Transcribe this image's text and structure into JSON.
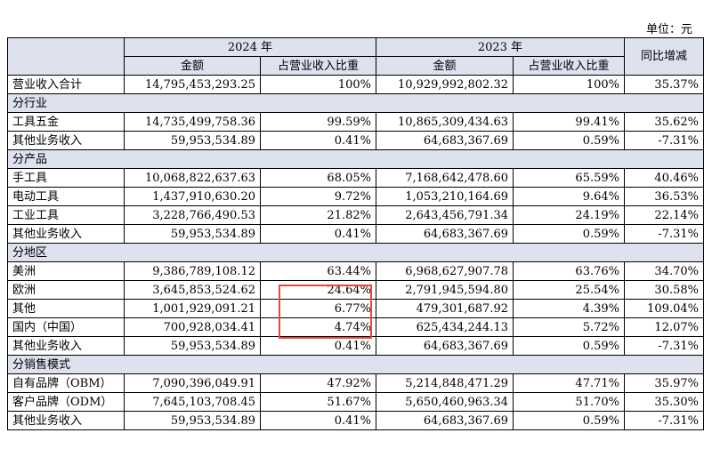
{
  "unit_label": "单位：元",
  "header": {
    "year_2024": "2024 年",
    "year_2023": "2023 年",
    "amount": "金额",
    "ratio": "占营业收入比重",
    "yoy": "同比增减"
  },
  "highlight_color": "#e84a3a",
  "header_bg": "#dde2ee",
  "rows": [
    {
      "type": "data",
      "label": "营业收入合计",
      "a24": "14,795,453,293.25",
      "r24": "100%",
      "a23": "10,929,992,802.32",
      "r23": "100%",
      "yoy": "35.37%"
    },
    {
      "type": "section",
      "label": "分行业"
    },
    {
      "type": "data",
      "label": "工具五金",
      "a24": "14,735,499,758.36",
      "r24": "99.59%",
      "a23": "10,865,309,434.63",
      "r23": "99.41%",
      "yoy": "35.62%"
    },
    {
      "type": "data",
      "label": "其他业务收入",
      "a24": "59,953,534.89",
      "r24": "0.41%",
      "a23": "64,683,367.69",
      "r23": "0.59%",
      "yoy": "-7.31%"
    },
    {
      "type": "section",
      "label": "分产品"
    },
    {
      "type": "data",
      "label": "手工具",
      "a24": "10,068,822,637.63",
      "r24": "68.05%",
      "a23": "7,168,642,478.60",
      "r23": "65.59%",
      "yoy": "40.46%"
    },
    {
      "type": "data",
      "label": "电动工具",
      "a24": "1,437,910,630.20",
      "r24": "9.72%",
      "a23": "1,053,210,164.69",
      "r23": "9.64%",
      "yoy": "36.53%"
    },
    {
      "type": "data",
      "label": "工业工具",
      "a24": "3,228,766,490.53",
      "r24": "21.82%",
      "a23": "2,643,456,791.34",
      "r23": "24.19%",
      "yoy": "22.14%"
    },
    {
      "type": "data",
      "label": "其他业务收入",
      "a24": "59,953,534.89",
      "r24": "0.41%",
      "a23": "64,683,367.69",
      "r23": "0.59%",
      "yoy": "-7.31%"
    },
    {
      "type": "section",
      "label": "分地区"
    },
    {
      "type": "data",
      "label": "美洲",
      "a24": "9,386,789,108.12",
      "r24": "63.44%",
      "a23": "6,968,627,907.78",
      "r23": "63.76%",
      "yoy": "34.70%"
    },
    {
      "type": "data",
      "label": "欧洲",
      "a24": "3,645,853,524.62",
      "r24": "24.64%",
      "a23": "2,791,945,594.80",
      "r23": "25.54%",
      "yoy": "30.58%"
    },
    {
      "type": "data",
      "label": "其他",
      "a24": "1,001,929,091.21",
      "r24": "6.77%",
      "a23": "479,301,687.92",
      "r23": "4.39%",
      "yoy": "109.04%"
    },
    {
      "type": "data",
      "label": "国内（中国）",
      "a24": "700,928,034.41",
      "r24": "4.74%",
      "a23": "625,434,244.13",
      "r23": "5.72%",
      "yoy": "12.07%"
    },
    {
      "type": "data",
      "label": "其他业务收入",
      "a24": "59,953,534.89",
      "r24": "0.41%",
      "a23": "64,683,367.69",
      "r23": "0.59%",
      "yoy": "-7.31%"
    },
    {
      "type": "section",
      "label": "分销售模式"
    },
    {
      "type": "data",
      "label": "自有品牌（OBM）",
      "a24": "7,090,396,049.91",
      "r24": "47.92%",
      "a23": "5,214,848,471.29",
      "r23": "47.71%",
      "yoy": "35.97%"
    },
    {
      "type": "data",
      "label": "客户品牌（ODM）",
      "a24": "7,645,103,708.45",
      "r24": "51.67%",
      "a23": "5,650,460,963.34",
      "r23": "51.70%",
      "yoy": "35.30%"
    },
    {
      "type": "data",
      "label": "其他业务收入",
      "a24": "59,953,534.89",
      "r24": "0.41%",
      "a23": "64,683,367.69",
      "r23": "0.59%",
      "yoy": "-7.31%"
    }
  ]
}
